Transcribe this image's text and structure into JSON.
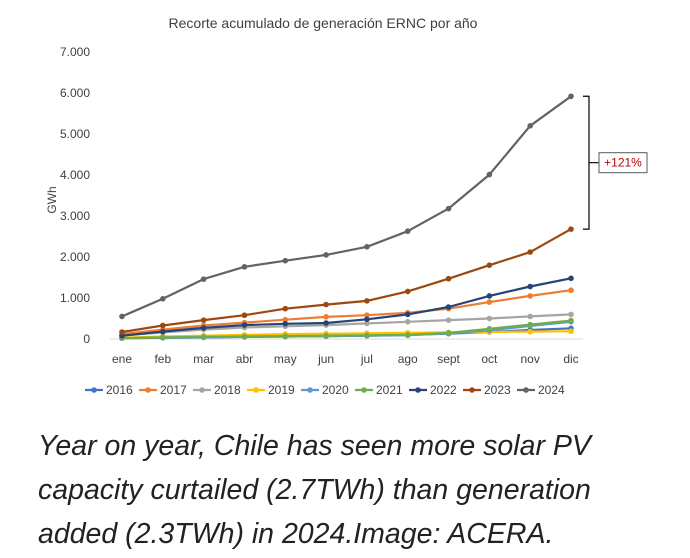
{
  "chart_data": {
    "type": "line",
    "title": "Recorte acumulado de generación ERNC por año",
    "xlabel": "",
    "ylabel": "GWh",
    "ylim": [
      0,
      7000
    ],
    "yticks": [
      0,
      1000,
      2000,
      3000,
      4000,
      5000,
      6000,
      7000
    ],
    "ytick_labels": [
      "0",
      "1.000",
      "2.000",
      "3.000",
      "4.000",
      "5.000",
      "6.000",
      "7.000"
    ],
    "categories": [
      "ene",
      "feb",
      "mar",
      "abr",
      "may",
      "jun",
      "jul",
      "ago",
      "sept",
      "oct",
      "nov",
      "dic"
    ],
    "legend_position": "bottom",
    "grid": false,
    "series": [
      {
        "name": "2016",
        "color": "#4472C4",
        "values": [
          20,
          30,
          40,
          50,
          60,
          70,
          80,
          100,
          130,
          170,
          220,
          260
        ]
      },
      {
        "name": "2017",
        "color": "#ED7D31",
        "values": [
          120,
          230,
          330,
          400,
          470,
          540,
          580,
          640,
          740,
          900,
          1050,
          1190
        ]
      },
      {
        "name": "2018",
        "color": "#A5A5A5",
        "values": [
          80,
          160,
          230,
          280,
          310,
          340,
          380,
          420,
          460,
          500,
          550,
          600
        ]
      },
      {
        "name": "2019",
        "color": "#FFC000",
        "values": [
          30,
          60,
          80,
          100,
          120,
          130,
          140,
          150,
          160,
          170,
          180,
          190
        ]
      },
      {
        "name": "2020",
        "color": "#5B9BD5",
        "values": [
          20,
          30,
          40,
          50,
          60,
          70,
          80,
          90,
          140,
          210,
          320,
          420
        ]
      },
      {
        "name": "2021",
        "color": "#70AD47",
        "values": [
          20,
          40,
          50,
          60,
          70,
          80,
          90,
          100,
          150,
          250,
          350,
          450
        ]
      },
      {
        "name": "2022",
        "color": "#264478",
        "values": [
          80,
          180,
          270,
          340,
          370,
          390,
          480,
          600,
          780,
          1050,
          1280,
          1480
        ]
      },
      {
        "name": "2023",
        "color": "#9E480E",
        "values": [
          170,
          330,
          460,
          580,
          740,
          840,
          930,
          1160,
          1470,
          1800,
          2120,
          2680
        ]
      },
      {
        "name": "2024",
        "color": "#636363",
        "values": [
          550,
          980,
          1460,
          1760,
          1910,
          2050,
          2250,
          2630,
          3180,
          4010,
          5200,
          5920
        ]
      }
    ],
    "annotations": [
      {
        "text": "+121%",
        "color": "#C00000",
        "from_value": 2680,
        "to_value": 5920,
        "at_category": "dic"
      }
    ]
  },
  "caption": "Year on year, Chile has seen more solar PV capacity curtailed (2.7TWh) than generation added (2.3TWh) in 2024.Image: ACERA."
}
